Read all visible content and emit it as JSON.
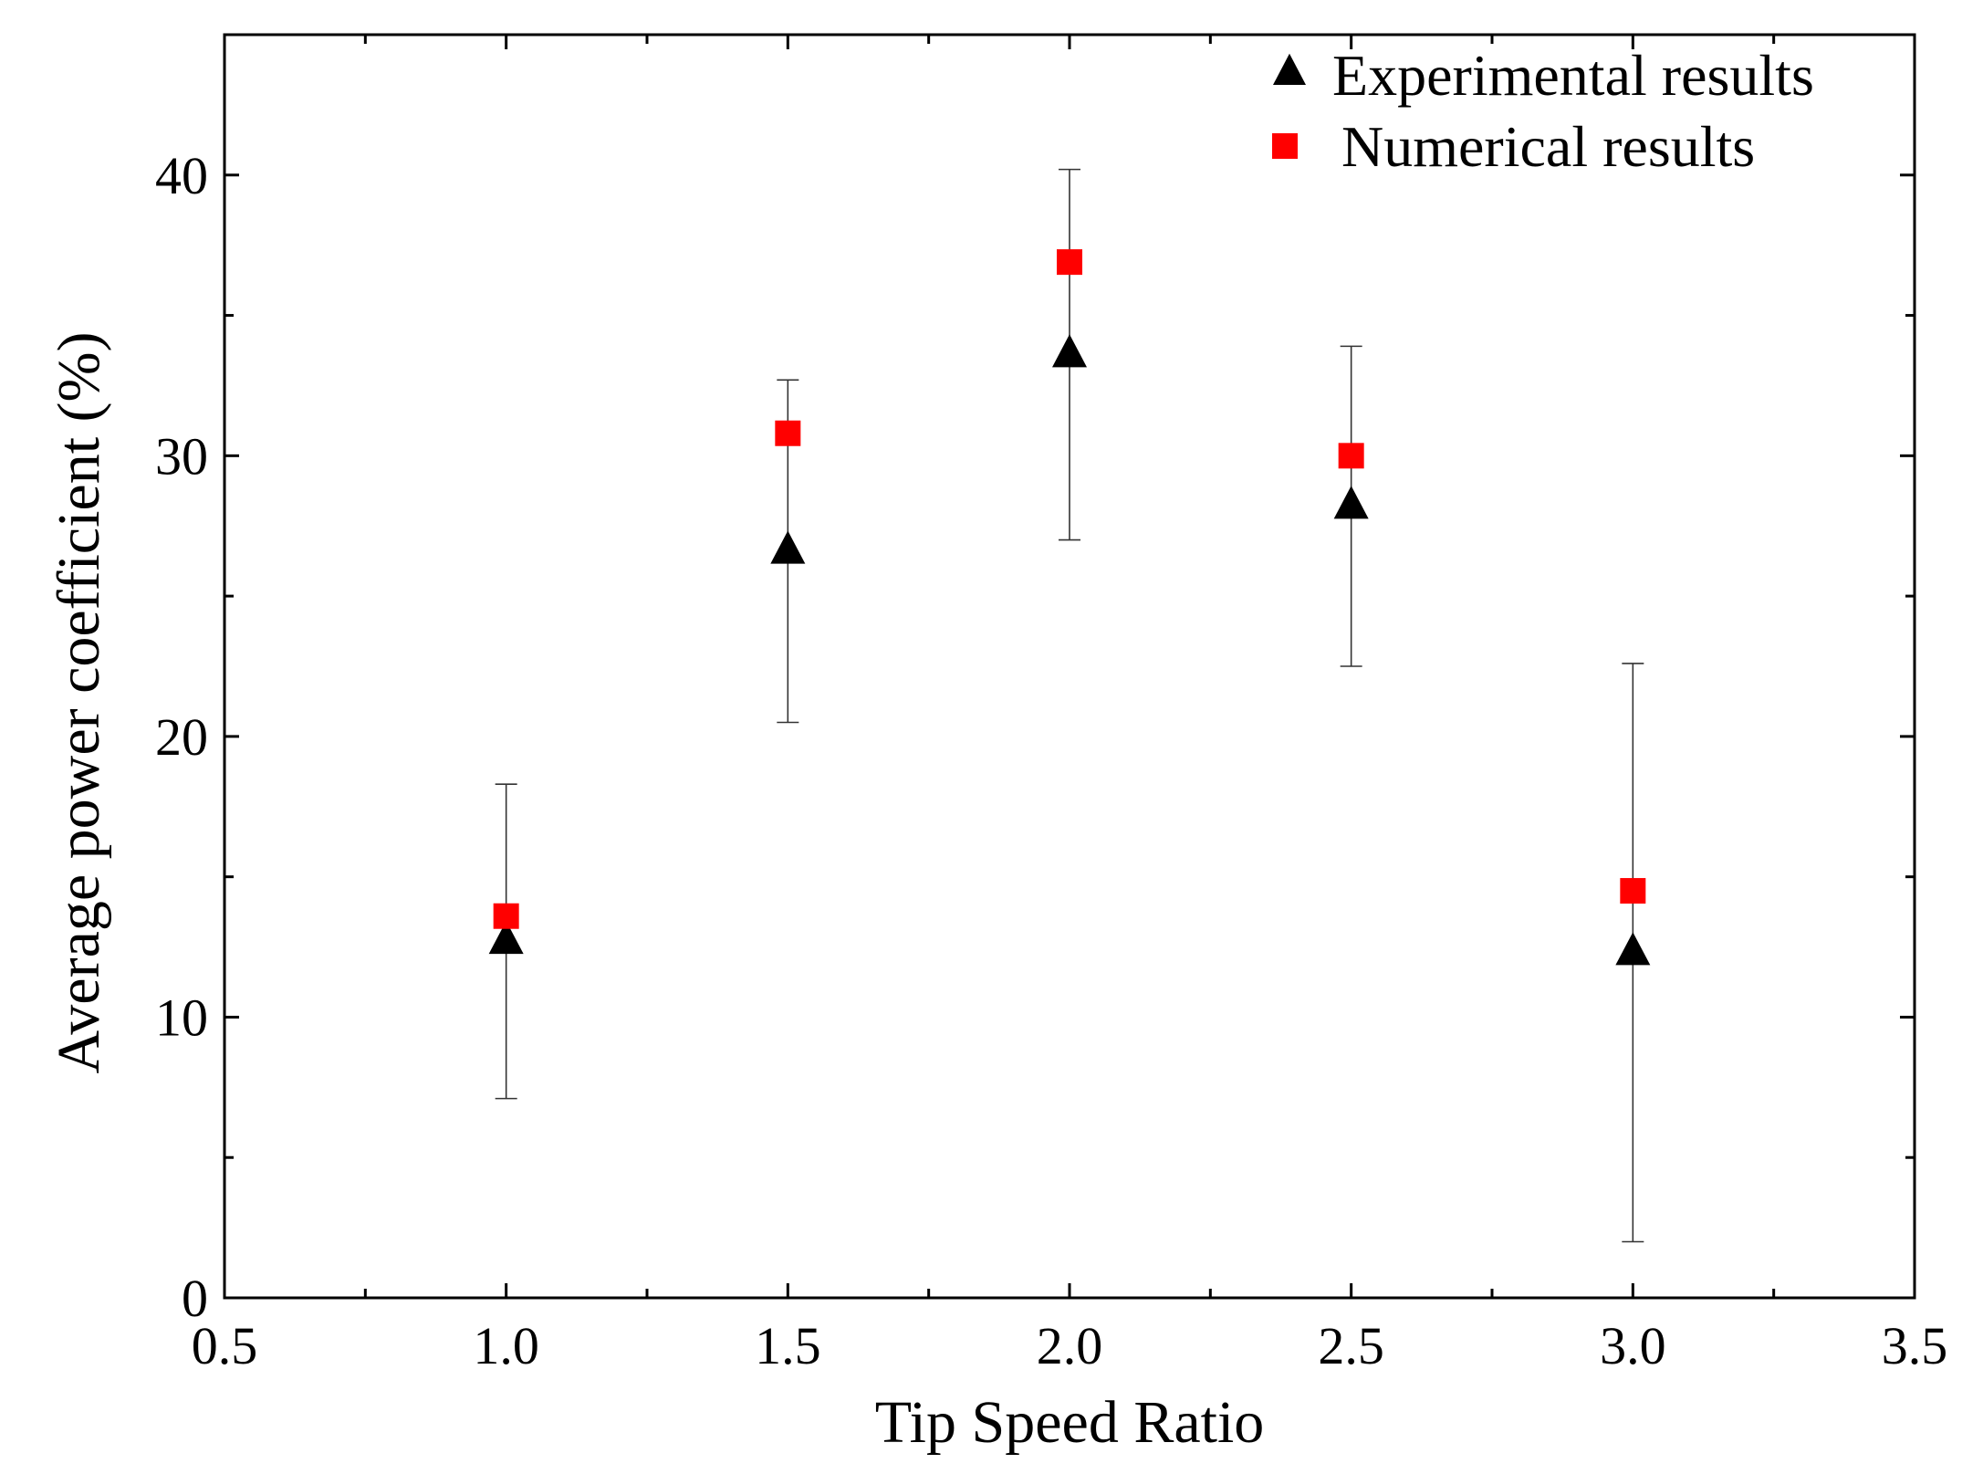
{
  "chart_data": {
    "type": "scatter",
    "title": "",
    "xlabel": "Tip Speed Ratio",
    "ylabel": "Average power coefficient (%)",
    "xlim": [
      0.5,
      3.5
    ],
    "ylim": [
      0,
      45
    ],
    "x_ticks": [
      0.5,
      1.0,
      1.5,
      2.0,
      2.5,
      3.0,
      3.5
    ],
    "x_tick_labels": [
      "0.5",
      "1.0",
      "1.5",
      "2.0",
      "2.5",
      "3.0",
      "3.5"
    ],
    "x_minor_ticks": [
      0.75,
      1.25,
      1.75,
      2.25,
      2.75,
      3.25
    ],
    "y_ticks": [
      0,
      10,
      20,
      30,
      40
    ],
    "y_tick_labels": [
      "0",
      "10",
      "20",
      "30",
      "40"
    ],
    "y_minor_ticks": [
      5,
      15,
      25,
      35
    ],
    "grid": false,
    "legend_position": "top-right",
    "series": [
      {
        "name": "Experimental results",
        "marker": "triangle",
        "color": "#000000",
        "x": [
          1.0,
          1.5,
          2.0,
          2.5,
          3.0
        ],
        "y": [
          12.7,
          26.6,
          33.6,
          28.2,
          12.3
        ],
        "error_low": [
          7.1,
          20.5,
          27.0,
          22.5,
          2.0
        ],
        "error_high": [
          18.3,
          32.7,
          40.2,
          33.9,
          22.6
        ]
      },
      {
        "name": "Numerical results",
        "marker": "square",
        "color": "#ff0000",
        "x": [
          1.0,
          1.5,
          2.0,
          2.5,
          3.0
        ],
        "y": [
          13.6,
          30.8,
          36.9,
          30.0,
          14.5
        ]
      }
    ]
  }
}
